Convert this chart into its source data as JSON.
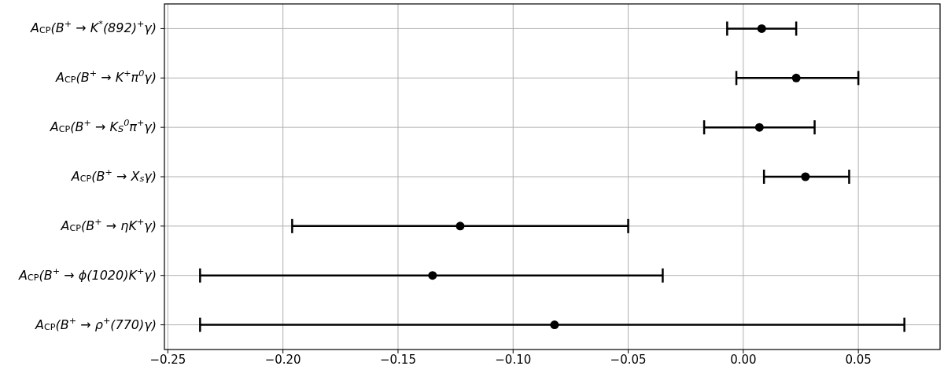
{
  "chart_data": {
    "type": "scatter",
    "orientation": "horizontal",
    "categories": [
      "A$_{CP}$(B$^{+}$ → K$^{*}$(892)$^{+}$γ)",
      "A$_{CP}$(B$^{+}$ → K$^{+}$π$^{0}$γ)",
      "A$_{CP}$(B$^{+}$ → K$_{S}$$^{0}$π$^{+}$γ)",
      "A$_{CP}$(B$^{+}$ → X$_{s}$γ)",
      "A$_{CP}$(B$^{+}$ → ηK$^{+}$γ)",
      "A$_{CP}$(B$^{+}$ → ϕ(1020)K$^{+}$γ)",
      "A$_{CP}$(B$^{+}$ → ρ$^{+}$(770)γ)"
    ],
    "values": [
      0.008,
      0.023,
      0.007,
      0.027,
      -0.123,
      -0.135,
      -0.082
    ],
    "errors": [
      [
        -0.007,
        0.023
      ],
      [
        -0.003,
        0.05
      ],
      [
        -0.017,
        0.031
      ],
      [
        0.009,
        0.046
      ],
      [
        -0.196,
        -0.05
      ],
      [
        -0.236,
        -0.035
      ],
      [
        -0.236,
        0.07
      ]
    ],
    "color": "#000000",
    "marker": "circle",
    "grid": true,
    "xlim": [
      -0.2515,
      0.0855
    ],
    "xticks": [
      {
        "value": -0.25,
        "label": "−0.25"
      },
      {
        "value": -0.2,
        "label": "−0.20"
      },
      {
        "value": -0.15,
        "label": "−0.15"
      },
      {
        "value": -0.1,
        "label": "−0.10"
      },
      {
        "value": -0.05,
        "label": "−0.05"
      },
      {
        "value": 0,
        "label": "0.00"
      },
      {
        "value": 0.05,
        "label": "0.05"
      }
    ]
  }
}
